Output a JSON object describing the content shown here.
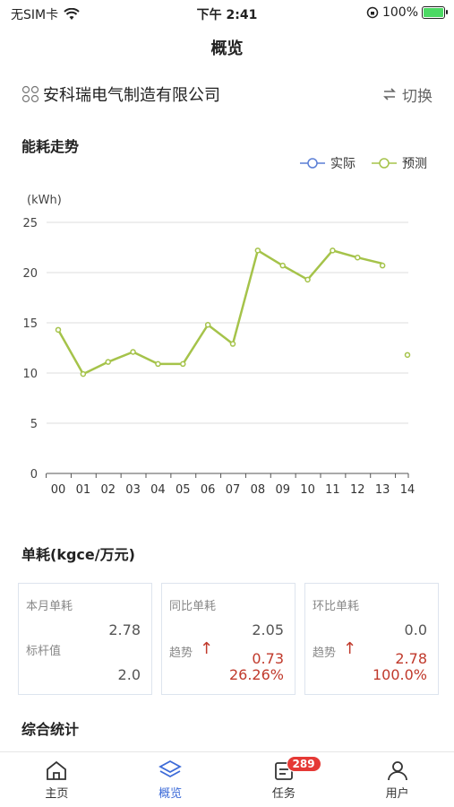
{
  "status_bar": {
    "carrier": "无SIM卡",
    "time": "下午 2:41",
    "battery": "100%"
  },
  "nav": {
    "title": "概览"
  },
  "company": {
    "name": "安科瑞电气制造有限公司",
    "switch_label": "切换"
  },
  "energy_section": {
    "title": "能耗走势"
  },
  "legend": {
    "actual": "实际",
    "forecast": "预测"
  },
  "colors": {
    "actual": "#5b7fd6",
    "forecast": "#a5c34a",
    "up": "#c0392b",
    "accent": "#3d6bd8"
  },
  "chart_data": {
    "type": "line",
    "unit_label": "(kWh)",
    "categories": [
      "00",
      "01",
      "02",
      "03",
      "04",
      "05",
      "06",
      "07",
      "08",
      "09",
      "10",
      "11",
      "12",
      "13",
      "14"
    ],
    "series": [
      {
        "name": "预测",
        "values": [
          14.3,
          9.9,
          11.1,
          12.1,
          10.9,
          10.9,
          14.8,
          12.9,
          22.2,
          20.7,
          19.3,
          22.2,
          21.5,
          20.9,
          null
        ]
      },
      {
        "name": "预测点",
        "values": [
          null,
          null,
          null,
          null,
          null,
          null,
          null,
          null,
          null,
          null,
          null,
          null,
          null,
          20.7,
          11.8
        ]
      }
    ],
    "ylim": [
      0,
      25
    ],
    "yticks": [
      0,
      5,
      10,
      15,
      20,
      25
    ],
    "grid": true
  },
  "unit_section": {
    "title": "单耗(kgce/万元)"
  },
  "cards": [
    {
      "label": "本月单耗",
      "value": "2.78",
      "label2": "标杆值",
      "value2": "2.0"
    },
    {
      "label": "同比单耗",
      "value": "2.05",
      "trend_label": "趋势",
      "trend_value": "0.73",
      "trend_percent": "26.26%"
    },
    {
      "label": "环比单耗",
      "value": "0.0",
      "trend_label": "趋势",
      "trend_value": "2.78",
      "trend_percent": "100.0%"
    }
  ],
  "stats_section": {
    "title": "综合统计"
  },
  "tabbar": {
    "items": [
      {
        "label": "主页",
        "icon": "home-icon"
      },
      {
        "label": "概览",
        "icon": "layers-icon"
      },
      {
        "label": "任务",
        "icon": "task-icon",
        "badge": "289"
      },
      {
        "label": "用户",
        "icon": "user-icon"
      }
    ]
  }
}
